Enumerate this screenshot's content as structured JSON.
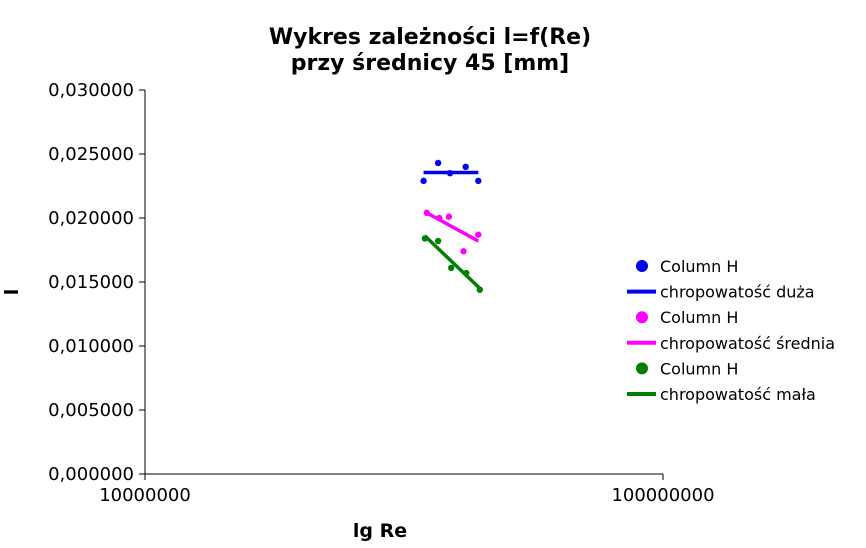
{
  "chart_data": {
    "type": "scatter",
    "title_line1": "Wykres zależności l=f(Re)",
    "title_line2": "przy średnicy 45 [mm]",
    "xlabel": "lg Re",
    "ylabel": "l",
    "x_scale": "log",
    "xlim": [
      10000000,
      100000000
    ],
    "ylim": [
      0,
      0.03
    ],
    "x_ticks": [
      10000000,
      100000000
    ],
    "x_tick_labels": [
      "10000000",
      "100000000"
    ],
    "y_ticks": [
      0,
      0.005,
      0.01,
      0.015,
      0.02,
      0.025,
      0.03
    ],
    "y_tick_labels": [
      "0,000000",
      "0,005000",
      "0,010000",
      "0,015000",
      "0,020000",
      "0,025000",
      "0,030000"
    ],
    "grid": false,
    "legend_position": "right",
    "series": [
      {
        "name": "Column H",
        "kind": "points",
        "color": "#0000ee",
        "x": [
          34500000,
          36800000,
          38800000,
          41600000,
          44000000
        ],
        "y": [
          0.0229,
          0.0243,
          0.0235,
          0.024,
          0.0229
        ]
      },
      {
        "name": "chropowatość duża",
        "kind": "trendline",
        "color": "#0000ee",
        "x": [
          34500000,
          44000000
        ],
        "y": [
          0.02355,
          0.02355
        ]
      },
      {
        "name": "Column H",
        "kind": "points",
        "color": "#ff00ff",
        "x": [
          35000000,
          37000000,
          38600000,
          41200000,
          44000000
        ],
        "y": [
          0.0204,
          0.02,
          0.0201,
          0.0174,
          0.0187
        ]
      },
      {
        "name": "chropowatość średnia",
        "kind": "trendline",
        "color": "#ff00ff",
        "x": [
          35000000,
          44000000
        ],
        "y": [
          0.0204,
          0.0182
        ]
      },
      {
        "name": "Column H",
        "kind": "points",
        "color": "#008000",
        "x": [
          34700000,
          36800000,
          39000000,
          41700000,
          44300000
        ],
        "y": [
          0.0184,
          0.0182,
          0.0161,
          0.0157,
          0.0144
        ]
      },
      {
        "name": "chropowatość mała",
        "kind": "trendline",
        "color": "#008000",
        "x": [
          34700000,
          44300000
        ],
        "y": [
          0.0186,
          0.0145
        ]
      }
    ]
  }
}
